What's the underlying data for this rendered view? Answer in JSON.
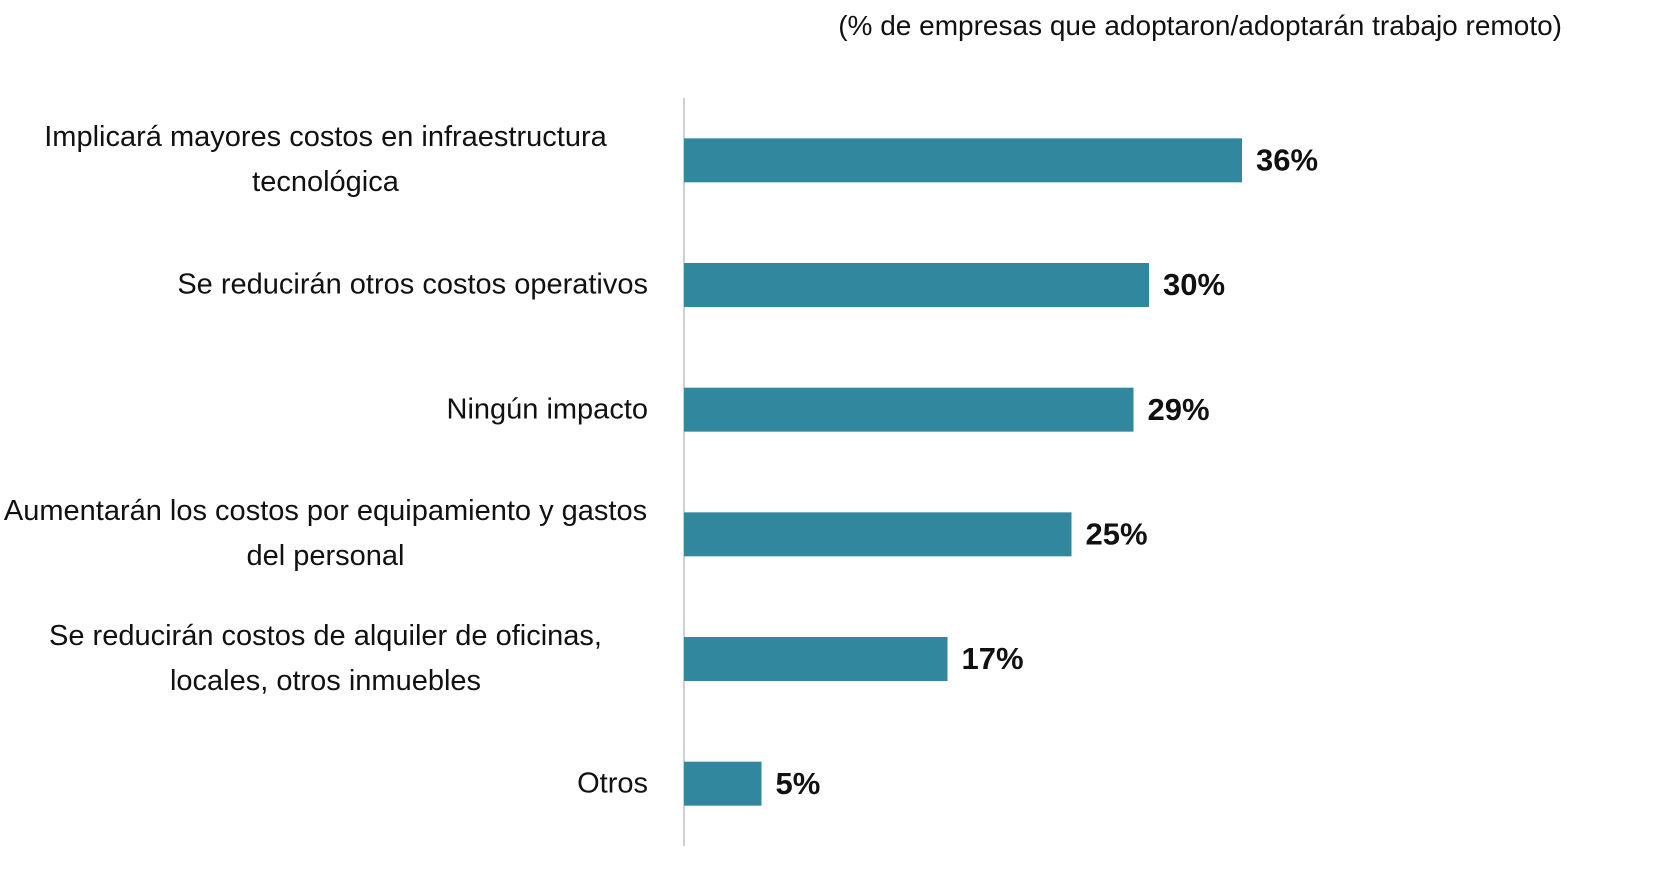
{
  "chart_data": {
    "type": "bar",
    "orientation": "horizontal",
    "subtitle": "(% de empresas que adoptaron/adoptarán trabajo remoto)",
    "categories": [
      "Implicará mayores costos en infraestructura tecnológica",
      "Se reducirán otros costos operativos",
      "Ningún impacto",
      "Aumentarán los costos por equipamiento y gastos del personal",
      "Se reducirán costos de alquiler de oficinas, locales, otros inmuebles",
      "Otros"
    ],
    "values": [
      36,
      30,
      29,
      25,
      17,
      5
    ],
    "value_labels": [
      "36%",
      "30%",
      "29%",
      "25%",
      "17%",
      "5%"
    ],
    "color": "#31879e",
    "xlim": [
      0,
      50
    ]
  }
}
